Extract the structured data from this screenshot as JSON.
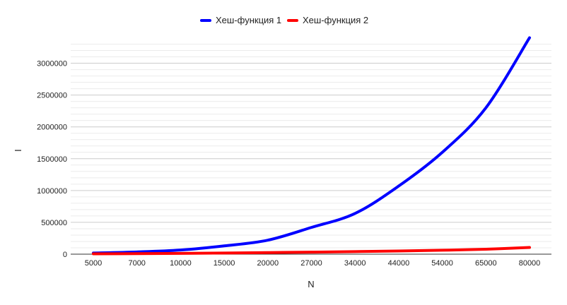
{
  "chart_data": {
    "type": "line",
    "title": "",
    "xlabel": "N",
    "ylabel": "I",
    "x": [
      "5000",
      "7000",
      "10000",
      "15000",
      "20000",
      "27000",
      "34000",
      "44000",
      "54000",
      "65000",
      "80000"
    ],
    "ylim": [
      0,
      3350000
    ],
    "yticks": [
      "0",
      "500000",
      "1000000",
      "1500000",
      "2000000",
      "2500000",
      "3000000"
    ],
    "ytick_values": [
      0,
      500000,
      1000000,
      1500000,
      2000000,
      2500000,
      3000000
    ],
    "grid": true,
    "legend_position": "top",
    "series": [
      {
        "name": "Хеш-функция 1",
        "color": "#0000ff",
        "values": [
          18000,
          35000,
          65000,
          130000,
          220000,
          420000,
          640000,
          1070000,
          1600000,
          2300000,
          3400000
        ]
      },
      {
        "name": "Хеш-функция 2",
        "color": "#ff0000",
        "values": [
          5000,
          8000,
          12000,
          18000,
          25000,
          32000,
          40000,
          50000,
          62000,
          78000,
          105000
        ]
      }
    ]
  }
}
